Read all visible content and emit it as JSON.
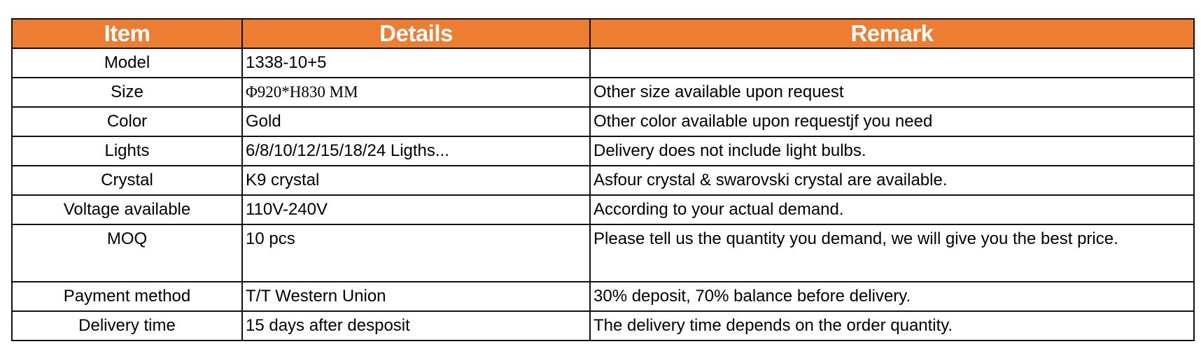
{
  "header": {
    "item": "Item",
    "details": "Details",
    "remark": "Remark",
    "color": "#ED7D31"
  },
  "rows": [
    {
      "item": "Model",
      "details": "1338-10+5",
      "remark": ""
    },
    {
      "item": "Size",
      "details": "Φ920*H830 MM",
      "remark": "Other size available upon request"
    },
    {
      "item": "Color",
      "details": "Gold",
      "remark": "Other color available upon requestjf you need"
    },
    {
      "item": "Lights",
      "details": "6/8/10/12/15/18/24 Ligths...",
      "remark": "Delivery does not include light bulbs."
    },
    {
      "item": "Crystal",
      "details": "K9 crystal",
      "remark": "Asfour crystal & swarovski crystal are available."
    },
    {
      "item": "Voltage available",
      "details": "110V-240V",
      "remark": "According to your actual demand."
    },
    {
      "item": "MOQ",
      "details": "10 pcs",
      "remark": "Please tell us the quantity you demand, we will give you the best price."
    },
    {
      "item": "Payment method",
      "details": "T/T Western Union",
      "remark": "30% deposit, 70% balance before delivery."
    },
    {
      "item": "Delivery time",
      "details": "15 days after desposit",
      "remark": "The delivery time depends on the order quantity."
    }
  ]
}
